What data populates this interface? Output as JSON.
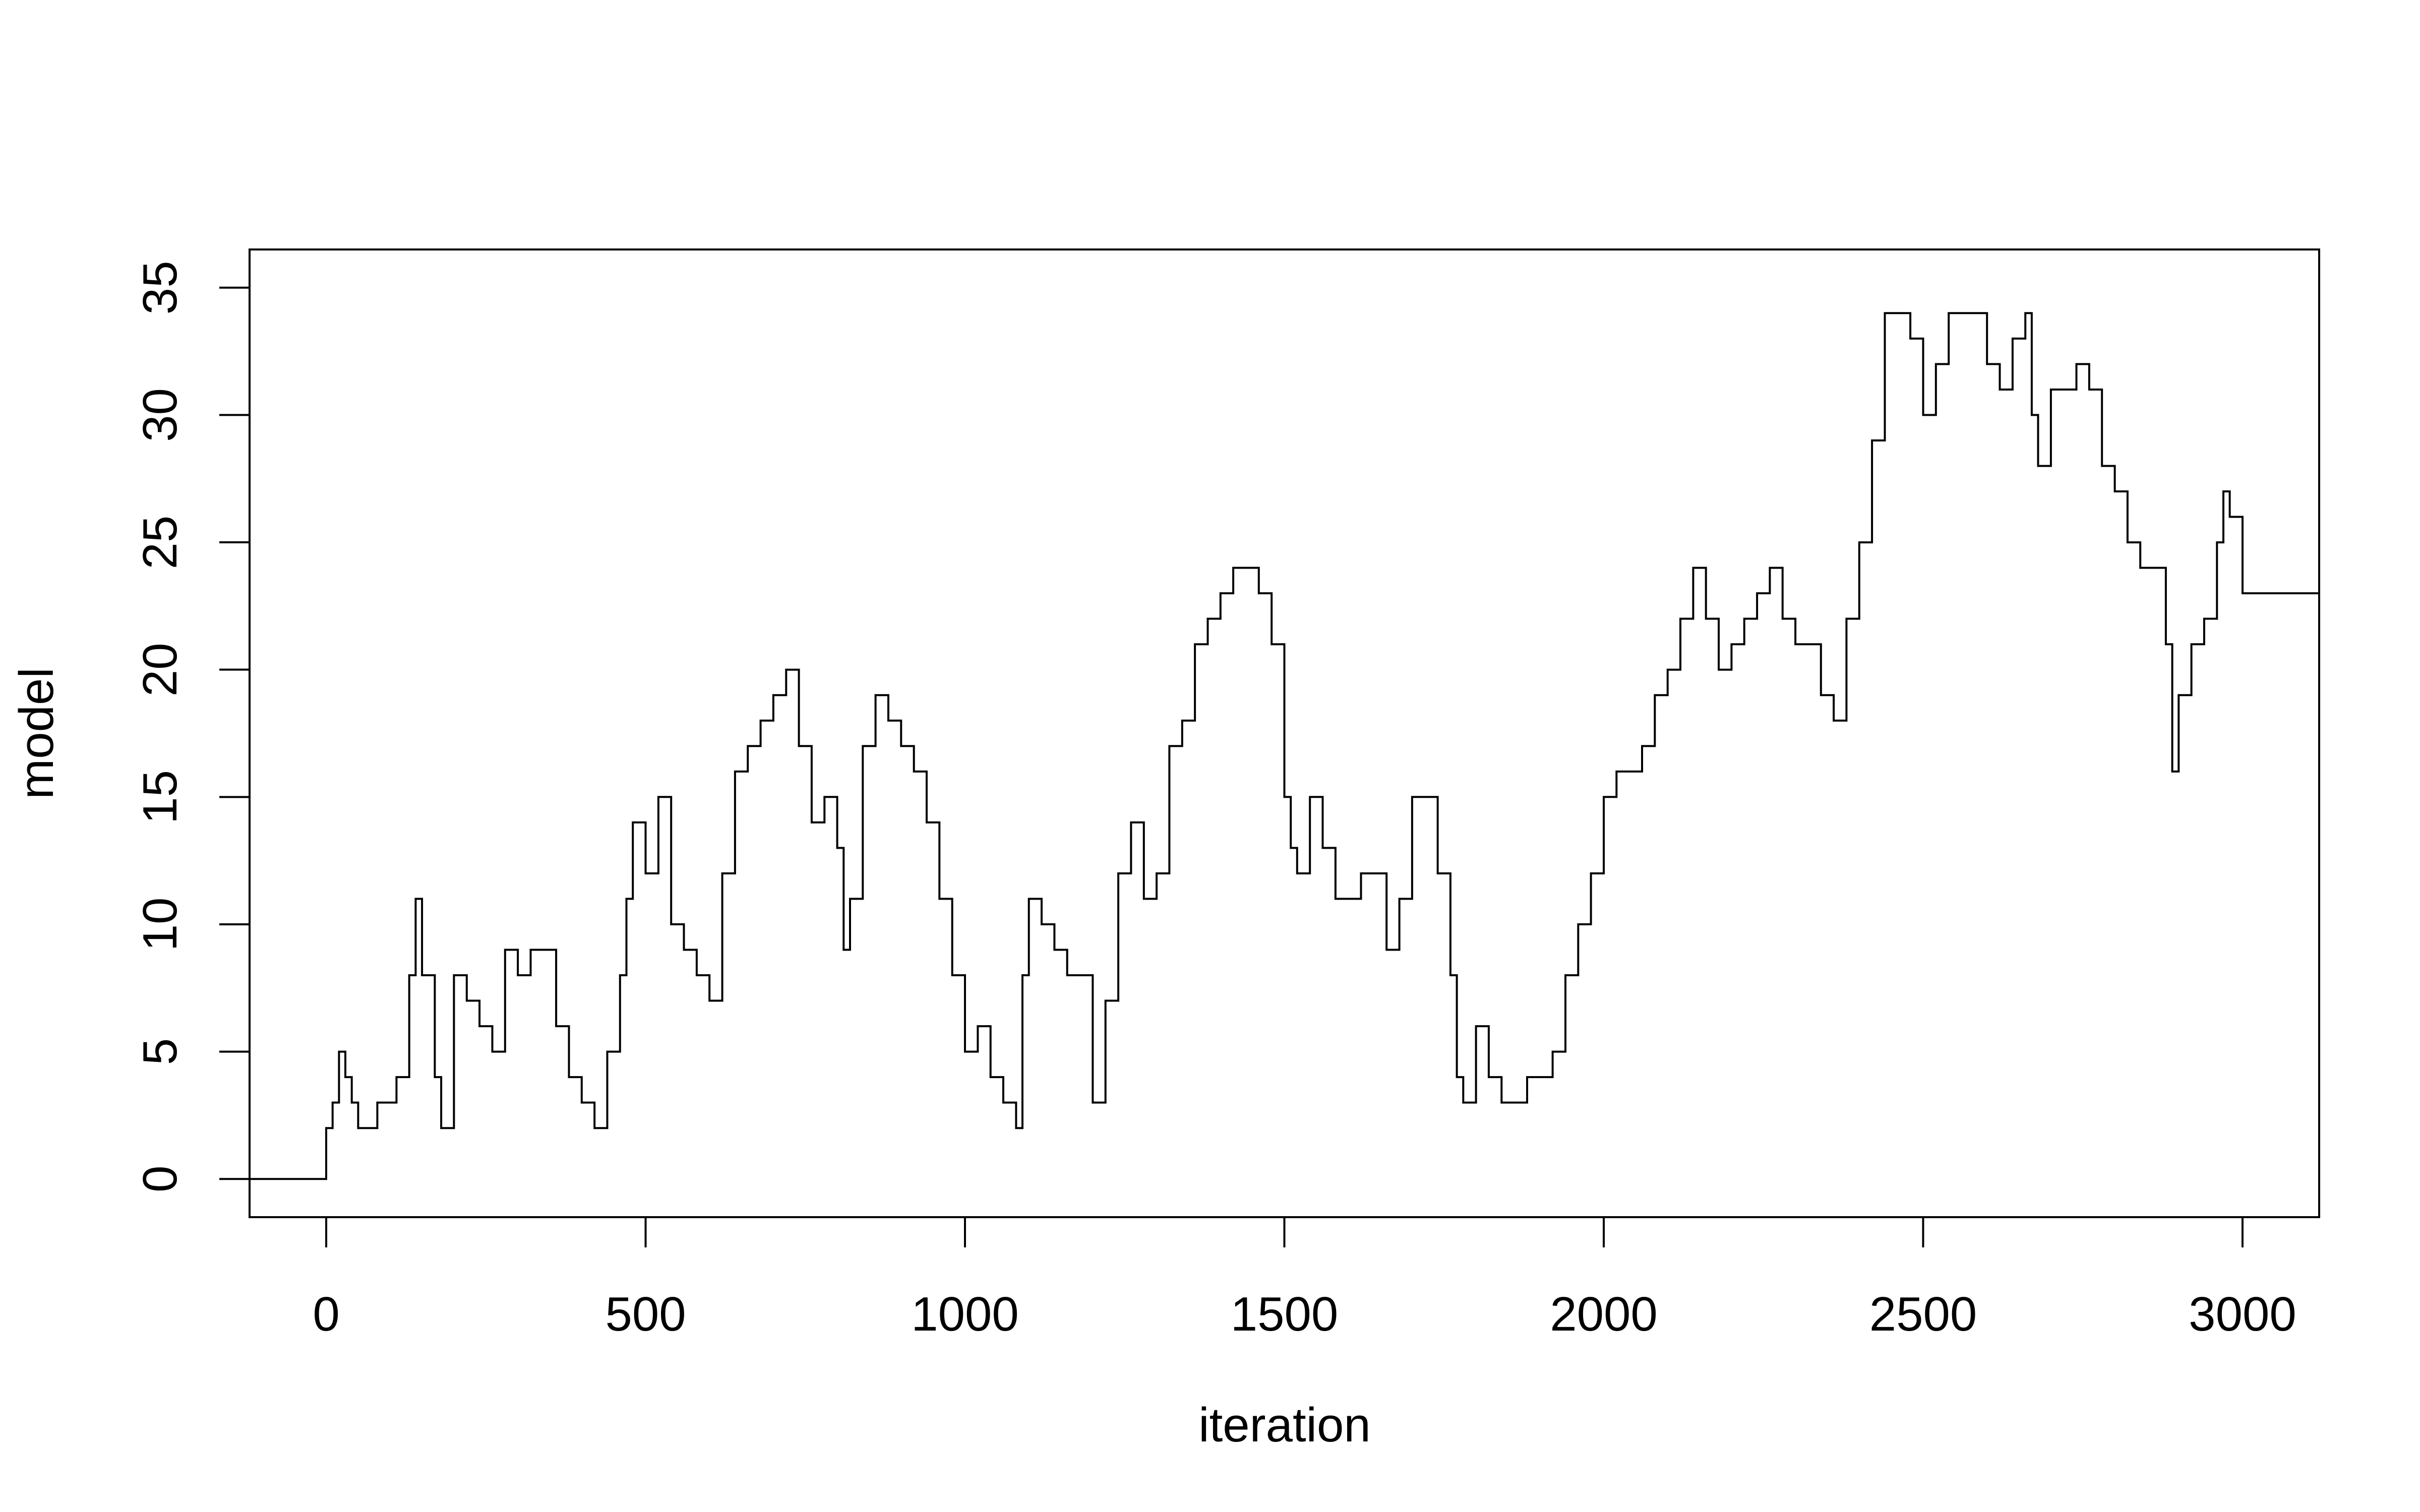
{
  "chart_data": {
    "type": "line",
    "line_style": "step",
    "title": "",
    "xlabel": "iteration",
    "ylabel": "model",
    "xlim": [
      -120,
      3120
    ],
    "ylim": [
      -1.5,
      36.5
    ],
    "xticks": [
      0,
      500,
      1000,
      1500,
      2000,
      2500,
      3000
    ],
    "xtick_labels": [
      "0",
      "500",
      "1000",
      "1500",
      "2000",
      "2500",
      "3000"
    ],
    "yticks": [
      0,
      5,
      10,
      15,
      20,
      25,
      30,
      35
    ],
    "ytick_labels": [
      "0",
      "5",
      "10",
      "15",
      "20",
      "25",
      "30",
      "35"
    ],
    "grid": false,
    "legend": "none",
    "line_color": "#000000",
    "series": [
      {
        "x": [
          -120,
          0,
          10,
          20,
          30,
          40,
          50,
          80,
          110,
          130,
          140,
          150,
          170,
          180,
          200,
          220,
          240,
          260,
          280,
          300,
          320,
          340,
          360,
          380,
          400,
          420,
          440,
          460,
          470,
          480,
          500,
          520,
          540,
          560,
          580,
          600,
          620,
          640,
          660,
          680,
          700,
          720,
          740,
          760,
          780,
          800,
          810,
          820,
          840,
          860,
          880,
          900,
          920,
          940,
          960,
          980,
          1000,
          1020,
          1040,
          1060,
          1070,
          1080,
          1090,
          1100,
          1120,
          1140,
          1160,
          1180,
          1200,
          1220,
          1240,
          1260,
          1280,
          1300,
          1320,
          1340,
          1360,
          1380,
          1400,
          1420,
          1440,
          1460,
          1480,
          1500,
          1510,
          1520,
          1540,
          1560,
          1580,
          1600,
          1620,
          1640,
          1660,
          1680,
          1700,
          1720,
          1740,
          1760,
          1770,
          1780,
          1800,
          1820,
          1840,
          1860,
          1880,
          1900,
          1920,
          1940,
          1960,
          1980,
          2000,
          2020,
          2040,
          2060,
          2080,
          2100,
          2120,
          2140,
          2160,
          2180,
          2200,
          2220,
          2240,
          2260,
          2280,
          2300,
          2320,
          2340,
          2360,
          2380,
          2400,
          2420,
          2440,
          2460,
          2480,
          2500,
          2520,
          2540,
          2560,
          2580,
          2600,
          2620,
          2640,
          2660,
          2670,
          2680,
          2700,
          2720,
          2740,
          2760,
          2780,
          2800,
          2820,
          2840,
          2860,
          2880,
          2890,
          2900,
          2920,
          2940,
          2960,
          2970,
          2980,
          3000,
          3120
        ],
        "values": [
          0,
          2,
          3,
          5,
          4,
          3,
          2,
          3,
          4,
          8,
          11,
          8,
          4,
          2,
          8,
          7,
          6,
          5,
          9,
          8,
          9,
          9,
          6,
          4,
          3,
          2,
          5,
          8,
          11,
          14,
          12,
          15,
          10,
          9,
          8,
          7,
          12,
          16,
          17,
          18,
          19,
          20,
          17,
          14,
          15,
          13,
          9,
          11,
          17,
          19,
          18,
          17,
          16,
          14,
          11,
          8,
          5,
          6,
          4,
          3,
          3,
          2,
          8,
          11,
          10,
          9,
          8,
          8,
          3,
          7,
          12,
          14,
          11,
          12,
          17,
          18,
          21,
          22,
          23,
          24,
          24,
          23,
          21,
          15,
          13,
          12,
          15,
          13,
          11,
          11,
          12,
          12,
          9,
          11,
          15,
          15,
          12,
          8,
          4,
          3,
          6,
          4,
          3,
          3,
          4,
          4,
          5,
          8,
          10,
          12,
          15,
          16,
          16,
          17,
          19,
          20,
          22,
          24,
          22,
          20,
          21,
          22,
          23,
          24,
          22,
          21,
          21,
          19,
          18,
          22,
          25,
          29,
          34,
          34,
          33,
          30,
          32,
          34,
          34,
          34,
          32,
          31,
          33,
          34,
          30,
          28,
          31,
          31,
          32,
          31,
          28,
          27,
          25,
          24,
          24,
          21,
          16,
          19,
          21,
          22,
          25,
          27,
          26,
          23,
          23
        ]
      }
    ]
  }
}
